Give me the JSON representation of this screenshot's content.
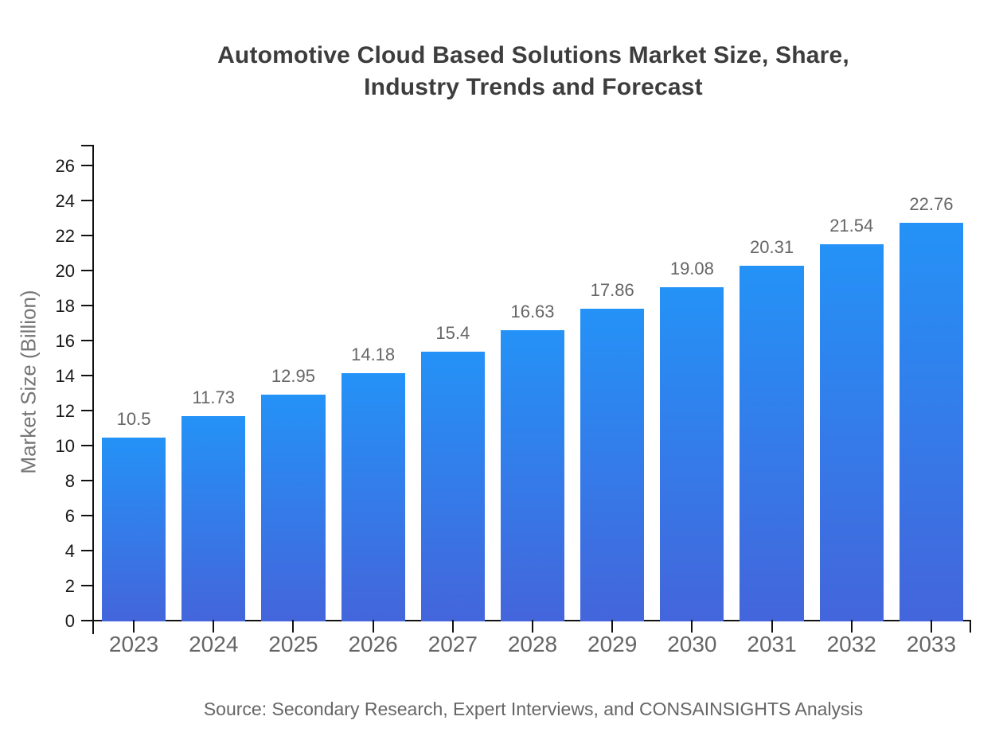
{
  "header": {
    "title_lines": [
      "Automotive Cloud Based Solutions Market Size, Share,",
      "Industry Trends and Forecast"
    ]
  },
  "footer": {
    "source": "Source: Secondary Research, Expert Interviews, and CONSAINSIGHTS Analysis"
  },
  "chart_data": {
    "type": "bar",
    "title": "Automotive Cloud Based Solutions Market Size, Share, Industry Trends and Forecast",
    "categories": [
      "2023",
      "2024",
      "2025",
      "2026",
      "2027",
      "2028",
      "2029",
      "2030",
      "2031",
      "2032",
      "2033"
    ],
    "values": [
      10.5,
      11.73,
      12.95,
      14.18,
      15.4,
      16.63,
      17.86,
      19.08,
      20.31,
      21.54,
      22.76
    ],
    "value_labels": [
      "10.5",
      "11.73",
      "12.95",
      "14.18",
      "15.4",
      "16.63",
      "17.86",
      "19.08",
      "20.31",
      "21.54",
      "22.76"
    ],
    "xlabel": "",
    "ylabel": "Market Size (Billion)",
    "ylim": [
      0,
      26
    ],
    "ytick_step": 2,
    "grid": false,
    "legend": "none",
    "colors": {
      "bar_gradient_top": "#2492F7",
      "bar_gradient_bottom": "#4465DB",
      "axis": "#111111",
      "ytick_label": "#1a1a1a",
      "category_label": "#666666",
      "value_label": "#666666",
      "title": "#3d3d3d",
      "axis_title": "#757575",
      "source_text": "#666666",
      "background": "#ffffff"
    }
  }
}
